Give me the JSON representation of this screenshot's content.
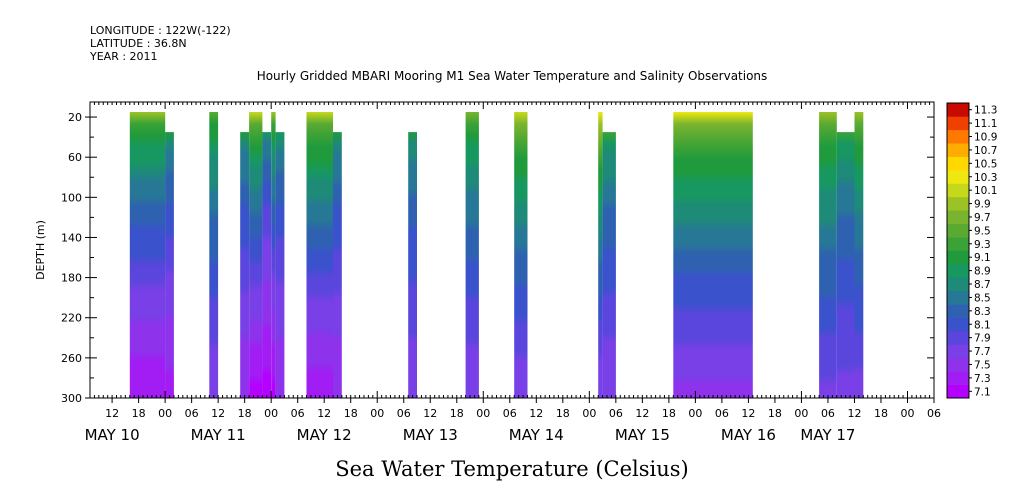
{
  "meta": {
    "longitude": "LONGITUDE : 122W(-122)",
    "latitude": "LATITUDE : 36.8N",
    "year": "YEAR : 2011"
  },
  "chart_data": {
    "type": "heatmap",
    "title": "Hourly Gridded MBARI Mooring M1 Sea Water Temperature and Salinity Observations",
    "xlabel": "Sea Water Temperature (Celsius)",
    "ylabel": "DEPTH (m)",
    "x_unit": "hours since May 10 00:00, 2011",
    "xlim": [
      -17,
      174
    ],
    "ylim": [
      5,
      300
    ],
    "y_inverted": true,
    "y_ticks": [
      20,
      60,
      100,
      140,
      180,
      220,
      260,
      300
    ],
    "x_hour_ticks": [
      {
        "t": -12,
        "label": "12"
      },
      {
        "t": -6,
        "label": "18"
      },
      {
        "t": 0,
        "label": "00"
      },
      {
        "t": 6,
        "label": "06"
      },
      {
        "t": 12,
        "label": "12"
      },
      {
        "t": 18,
        "label": "18"
      },
      {
        "t": 24,
        "label": "00"
      },
      {
        "t": 30,
        "label": "06"
      },
      {
        "t": 36,
        "label": "12"
      },
      {
        "t": 42,
        "label": "18"
      },
      {
        "t": 48,
        "label": "00"
      },
      {
        "t": 54,
        "label": "06"
      },
      {
        "t": 60,
        "label": "12"
      },
      {
        "t": 66,
        "label": "18"
      },
      {
        "t": 72,
        "label": "00"
      },
      {
        "t": 78,
        "label": "06"
      },
      {
        "t": 84,
        "label": "12"
      },
      {
        "t": 90,
        "label": "18"
      },
      {
        "t": 96,
        "label": "00"
      },
      {
        "t": 102,
        "label": "06"
      },
      {
        "t": 108,
        "label": "12"
      },
      {
        "t": 114,
        "label": "18"
      },
      {
        "t": 120,
        "label": "00"
      },
      {
        "t": 126,
        "label": "06"
      },
      {
        "t": 132,
        "label": "12"
      },
      {
        "t": 138,
        "label": "18"
      },
      {
        "t": 144,
        "label": "00"
      },
      {
        "t": 150,
        "label": "06"
      },
      {
        "t": 156,
        "label": "12"
      },
      {
        "t": 162,
        "label": "18"
      },
      {
        "t": 168,
        "label": "00"
      },
      {
        "t": 174,
        "label": "06"
      }
    ],
    "x_day_labels": [
      {
        "t": -12,
        "label": "MAY 10"
      },
      {
        "t": 12,
        "label": "MAY 11"
      },
      {
        "t": 36,
        "label": "MAY 12"
      },
      {
        "t": 60,
        "label": "MAY 13"
      },
      {
        "t": 84,
        "label": "MAY 14"
      },
      {
        "t": 108,
        "label": "MAY 15"
      },
      {
        "t": 132,
        "label": "MAY 16"
      },
      {
        "t": 150,
        "label": "MAY 17"
      }
    ],
    "colorbar": {
      "levels": [
        "7.1",
        "7.3",
        "7.5",
        "7.7",
        "7.9",
        "8.1",
        "8.3",
        "8.5",
        "8.7",
        "8.9",
        "9.1",
        "9.3",
        "9.5",
        "9.7",
        "9.9",
        "10.1",
        "10.3",
        "10.5",
        "10.7",
        "10.9",
        "11.1",
        "11.3"
      ],
      "colors": [
        "#b400ff",
        "#a21cf4",
        "#8e32ec",
        "#7840e6",
        "#5a46dc",
        "#3a52cc",
        "#2e62b0",
        "#267896",
        "#1e8a78",
        "#179860",
        "#1f9a3c",
        "#3aa236",
        "#5aaa32",
        "#7ab42e",
        "#9cc226",
        "#c6d81c",
        "#eee810",
        "#ffd800",
        "#ffac00",
        "#ff7800",
        "#f04000",
        "#c80a00"
      ]
    },
    "data_blocks": [
      {
        "t0": -8,
        "t1": 0,
        "d0": 20,
        "d1": 300,
        "surface_temp": 9.9,
        "bottom_temp": 7.3
      },
      {
        "t0": 0,
        "t1": 2,
        "d0": 40,
        "d1": 300,
        "surface_temp": 9.1,
        "bottom_temp": 7.4
      },
      {
        "t0": 10,
        "t1": 12,
        "d0": 20,
        "d1": 300,
        "surface_temp": 9.6,
        "bottom_temp": 7.7
      },
      {
        "t0": 17,
        "t1": 19,
        "d0": 40,
        "d1": 300,
        "surface_temp": 9.1,
        "bottom_temp": 7.5
      },
      {
        "t0": 19,
        "t1": 22,
        "d0": 20,
        "d1": 300,
        "surface_temp": 10.1,
        "bottom_temp": 7.2
      },
      {
        "t0": 22,
        "t1": 24,
        "d0": 40,
        "d1": 300,
        "surface_temp": 9.0,
        "bottom_temp": 7.2
      },
      {
        "t0": 24,
        "t1": 25,
        "d0": 20,
        "d1": 300,
        "surface_temp": 9.9,
        "bottom_temp": 7.2
      },
      {
        "t0": 25,
        "t1": 27,
        "d0": 40,
        "d1": 300,
        "surface_temp": 9.0,
        "bottom_temp": 7.5
      },
      {
        "t0": 32,
        "t1": 38,
        "d0": 20,
        "d1": 300,
        "surface_temp": 10.2,
        "bottom_temp": 7.3
      },
      {
        "t0": 38,
        "t1": 40,
        "d0": 40,
        "d1": 300,
        "surface_temp": 9.1,
        "bottom_temp": 7.5
      },
      {
        "t0": 55,
        "t1": 57,
        "d0": 40,
        "d1": 300,
        "surface_temp": 9.1,
        "bottom_temp": 7.7
      },
      {
        "t0": 68,
        "t1": 71,
        "d0": 20,
        "d1": 300,
        "surface_temp": 9.7,
        "bottom_temp": 7.7
      },
      {
        "t0": 79,
        "t1": 82,
        "d0": 20,
        "d1": 300,
        "surface_temp": 10.2,
        "bottom_temp": 7.7
      },
      {
        "t0": 98,
        "t1": 99,
        "d0": 20,
        "d1": 300,
        "surface_temp": 10.4,
        "bottom_temp": 7.7
      },
      {
        "t0": 99,
        "t1": 102,
        "d0": 40,
        "d1": 300,
        "surface_temp": 9.3,
        "bottom_temp": 7.7
      },
      {
        "t0": 115,
        "t1": 133,
        "d0": 20,
        "d1": 300,
        "surface_temp": 10.3,
        "bottom_temp": 7.6
      },
      {
        "t0": 148,
        "t1": 152,
        "d0": 20,
        "d1": 300,
        "surface_temp": 10.0,
        "bottom_temp": 7.8
      },
      {
        "t0": 152,
        "t1": 156,
        "d0": 40,
        "d1": 300,
        "surface_temp": 9.3,
        "bottom_temp": 7.8
      },
      {
        "t0": 156,
        "t1": 158,
        "d0": 20,
        "d1": 300,
        "surface_temp": 9.9,
        "bottom_temp": 7.8
      }
    ]
  }
}
